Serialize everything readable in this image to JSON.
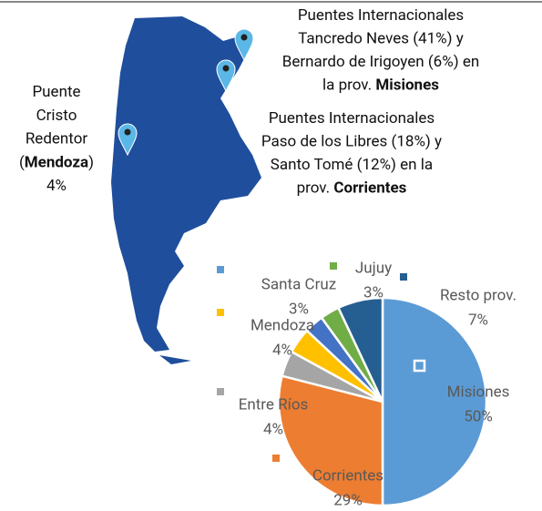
{
  "chart_data": {
    "type": "pie",
    "categories": [
      "Misiones",
      "Corrientes",
      "Entre Ríos",
      "Mendoza",
      "Santa Cruz",
      "Jujuy",
      "Resto prov."
    ],
    "values": [
      50,
      29,
      4,
      4,
      3,
      3,
      7
    ],
    "value_labels": [
      "50%",
      "29%",
      "4%",
      "4%",
      "3%",
      "3%",
      "7%"
    ],
    "colors": [
      "#5b9bd5",
      "#ed7d31",
      "#a5a5a5",
      "#ffc000",
      "#4472c4",
      "#70ad47",
      "#255e91"
    ],
    "annotations": [
      {
        "lines": [
          [
            "Puentes Internacionales"
          ],
          [
            "Tancredo Neves (41%) y"
          ],
          [
            "Bernardo de Irigoyen (6%) en"
          ],
          [
            "la prov. ",
            {
              "bold": "Misiones"
            }
          ]
        ]
      },
      {
        "lines": [
          [
            "Puentes Internacionales"
          ],
          [
            "Paso de los Libres (18%) y"
          ],
          [
            "Santo Tomé (12%) en la"
          ],
          [
            "prov. ",
            {
              "bold": "Corrientes"
            }
          ]
        ]
      },
      {
        "lines": [
          [
            "Puente"
          ],
          [
            "Cristo"
          ],
          [
            "Redentor"
          ],
          [
            "(",
            {
              "bold": "Mendoza"
            },
            ")"
          ],
          [
            "4%"
          ]
        ]
      }
    ]
  }
}
